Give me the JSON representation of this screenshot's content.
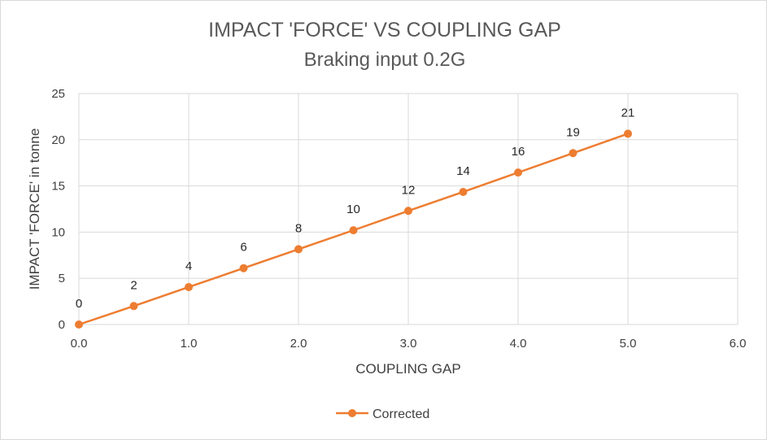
{
  "chart_data": {
    "type": "line",
    "title": "IMPACT 'FORCE' VS COUPLING GAP",
    "subtitle": "Braking input 0.2G",
    "xlabel": "COUPLING GAP",
    "ylabel": "IMPACT 'FORCE' in tonne",
    "xlim": [
      0,
      6
    ],
    "ylim": [
      0,
      25
    ],
    "x_ticks": [
      "0.0",
      "1.0",
      "2.0",
      "3.0",
      "4.0",
      "5.0",
      "6.0"
    ],
    "y_ticks": [
      "0",
      "5",
      "10",
      "15",
      "20",
      "25"
    ],
    "grid": true,
    "legend_position": "bottom",
    "series": [
      {
        "name": "Corrected",
        "color": "#ed7d31",
        "x": [
          0.0,
          0.5,
          1.0,
          1.5,
          2.0,
          2.5,
          3.0,
          3.5,
          4.0,
          4.5,
          5.0
        ],
        "y": [
          0,
          2.0,
          4.05,
          6.1,
          8.15,
          10.2,
          12.3,
          14.35,
          16.45,
          18.55,
          20.65
        ],
        "labels": [
          "0",
          "2",
          "4",
          "6",
          "8",
          "10",
          "12",
          "14",
          "16",
          "19",
          "21"
        ]
      }
    ]
  }
}
